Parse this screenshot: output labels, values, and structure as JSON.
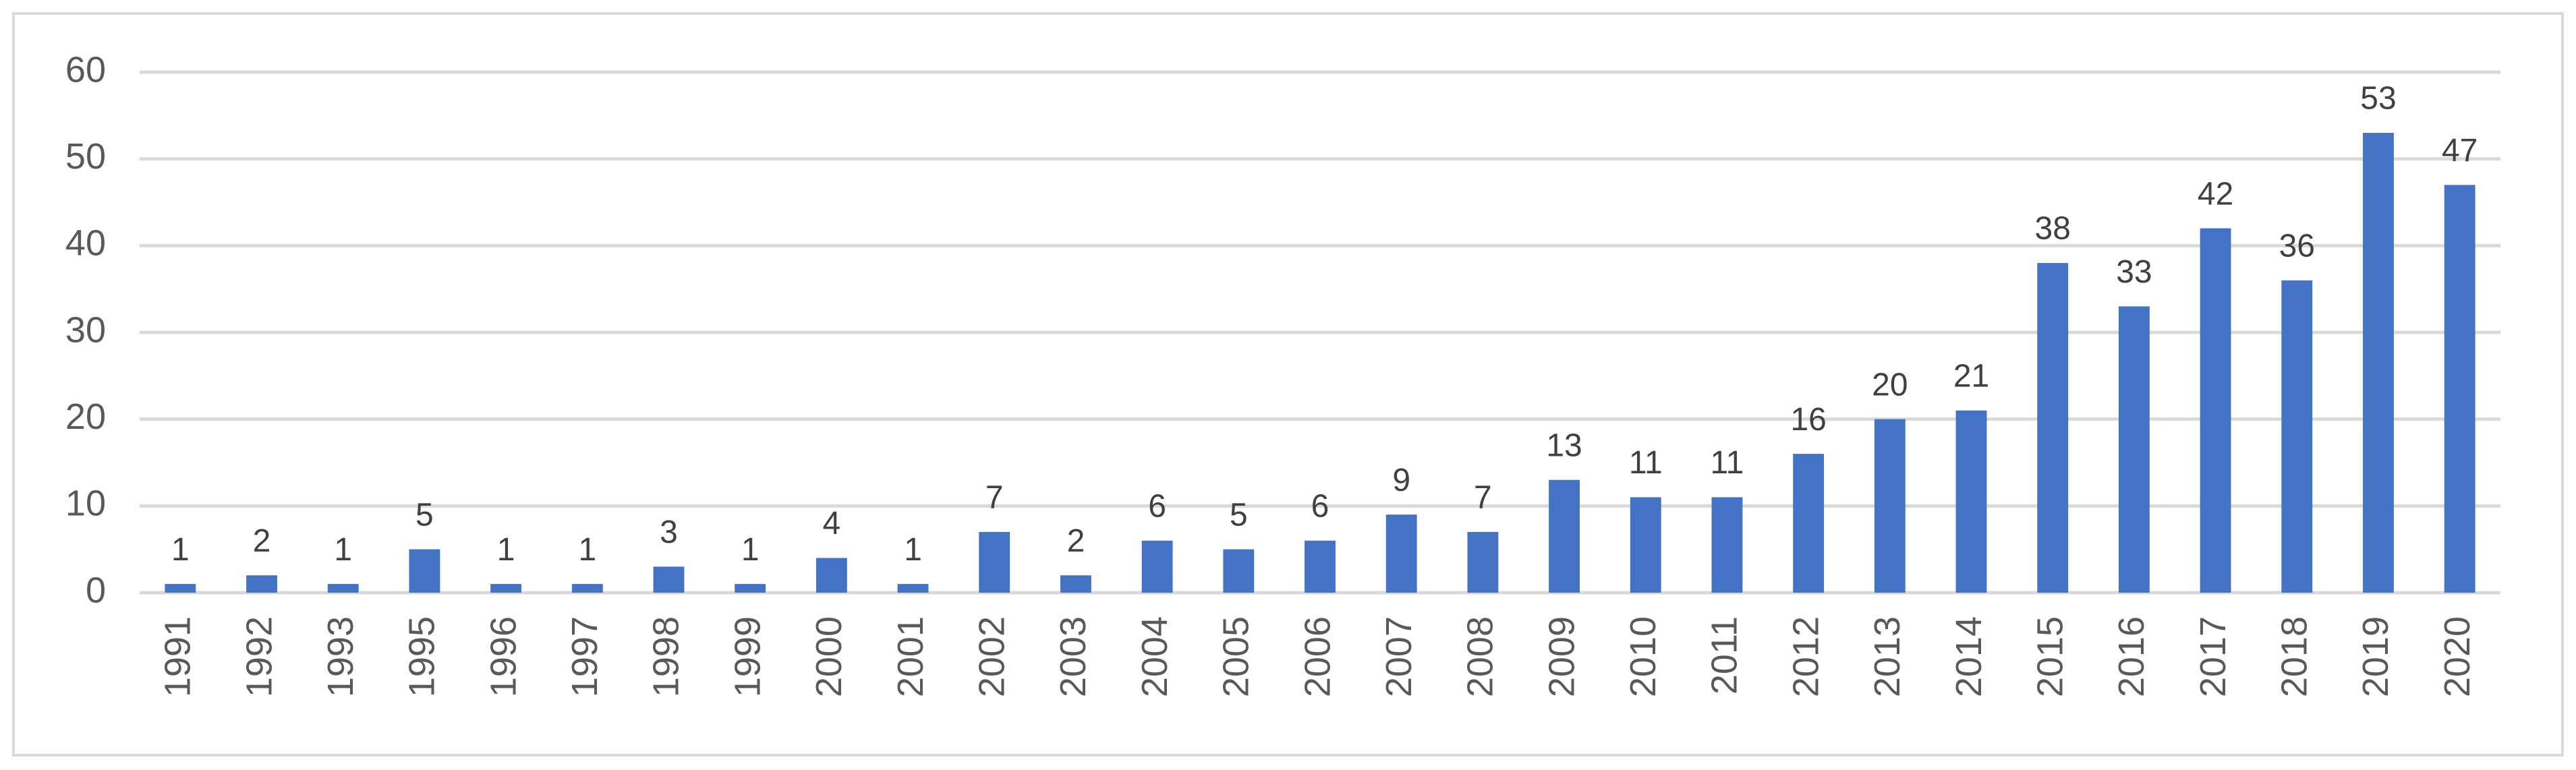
{
  "chart_data": {
    "type": "bar",
    "categories": [
      "1991",
      "1992",
      "1993",
      "1995",
      "1996",
      "1997",
      "1998",
      "1999",
      "2000",
      "2001",
      "2002",
      "2003",
      "2004",
      "2005",
      "2006",
      "2007",
      "2008",
      "2009",
      "2010",
      "2011",
      "2012",
      "2013",
      "2014",
      "2015",
      "2016",
      "2017",
      "2018",
      "2019",
      "2020"
    ],
    "values": [
      1,
      2,
      1,
      5,
      1,
      1,
      3,
      1,
      4,
      1,
      7,
      2,
      6,
      5,
      6,
      9,
      7,
      13,
      11,
      11,
      16,
      20,
      21,
      38,
      33,
      42,
      36,
      53,
      47
    ],
    "color": "#4472c4",
    "ylim": [
      0,
      60
    ],
    "yticks": [
      0,
      10,
      20,
      30,
      40,
      50,
      60
    ],
    "grid": true
  }
}
